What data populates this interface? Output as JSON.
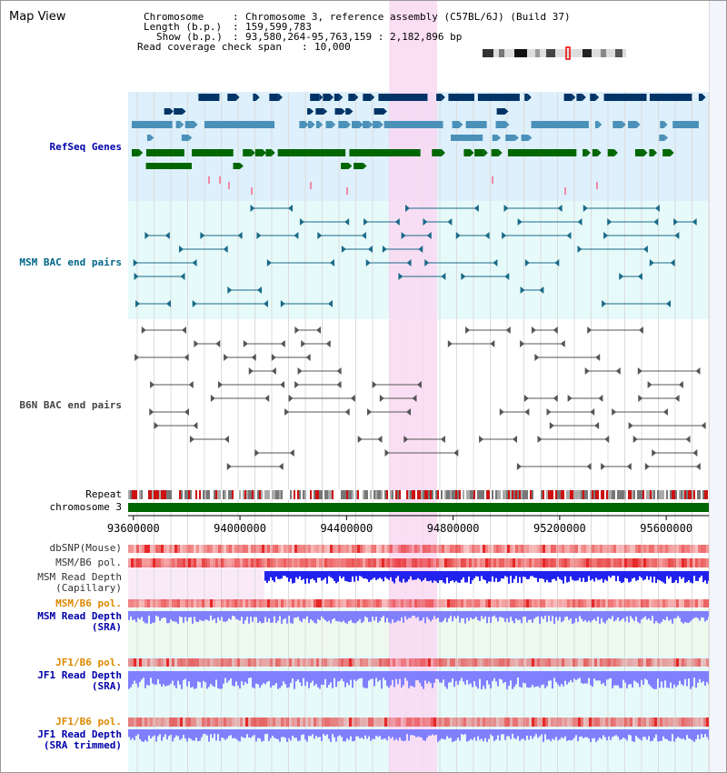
{
  "title": "Map View",
  "info": {
    "chromosome_label": "Chromosome",
    "chromosome_value": "Chromosome 3, reference assembly (C57BL/6J) (Build 37)",
    "length_label": "Length (b.p.)",
    "length_value": "159,599,783",
    "show_label": "Show (b.p.)",
    "show_value": "93,580,264-95,763,159 : 2,182,896 bp",
    "coverage_label": "Read coverage check span",
    "coverage_value": "10,000"
  },
  "tracks": {
    "refseq": "RefSeq Genes",
    "msm_bac": "MSM BAC end pairs",
    "b6n_bac": "B6N BAC end pairs",
    "repeat": "Repeat",
    "chromosome": "chromosome 3",
    "dbsnp": "dbSNP(Mouse)",
    "msm_b6_pol_1": "MSM/B6 pol.",
    "msm_read_depth_cap": "MSM Read Depth",
    "msm_read_depth_cap_sub": "(Capillary)",
    "msm_b6_pol_2": "MSM/B6 pol.",
    "msm_read_depth_sra": "MSM Read Depth",
    "msm_read_depth_sra_sub": "(SRA)",
    "jf1_b6_pol_1": "JF1/B6 pol.",
    "jf1_read_depth_sra": "JF1 Read Depth",
    "jf1_read_depth_sra_sub": "(SRA)",
    "jf1_b6_pol_2": "JF1/B6 pol.",
    "jf1_read_depth_trim": "JF1 Read Depth",
    "jf1_read_depth_trim_sub": "(SRA trimmed)"
  },
  "axis": {
    "ticks": [
      "93600000",
      "94000000",
      "94400000",
      "94800000",
      "95200000",
      "95600000"
    ],
    "tick_values": [
      93600000,
      94000000,
      94400000,
      94800000,
      95200000,
      95600000
    ],
    "start": 93580264,
    "end": 95763159
  },
  "highlight": {
    "start": 94560000,
    "end": 94740000
  },
  "colors": {
    "refseq_navy": "#003366",
    "refseq_blue": "#4a90b8",
    "refseq_green": "#006600",
    "bac_teal": "#1a6a88",
    "bac_gray": "#555555",
    "chromosome_green": "#006600",
    "highlight_pink": "#f9d8f2",
    "depth_blue": "#2222ee",
    "depth_light": "#8080ff",
    "pol_red": "#ee3333"
  }
}
